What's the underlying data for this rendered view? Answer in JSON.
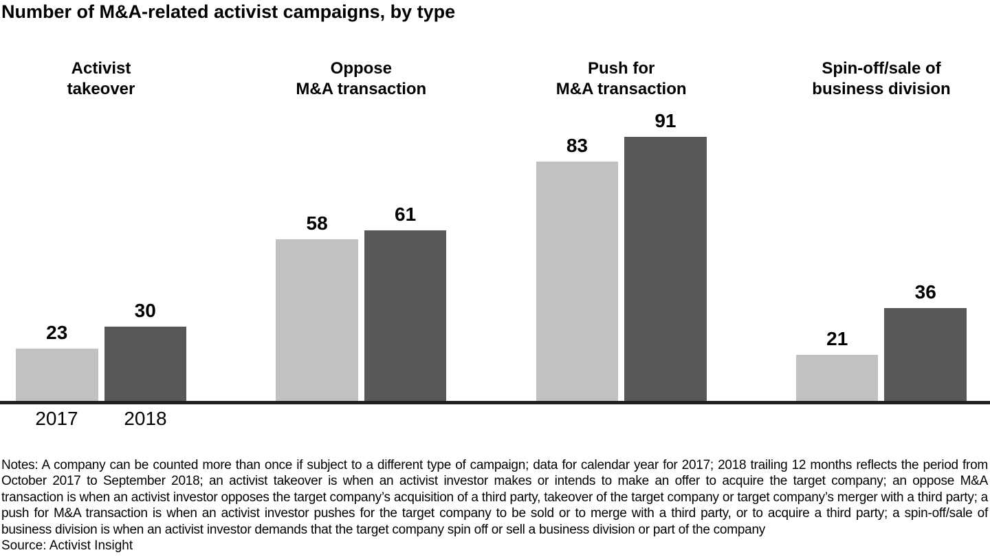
{
  "title": "Number of M&A-related activist campaigns, by type",
  "chart_data": {
    "type": "bar",
    "title": "Number of M&A-related activist campaigns, by type",
    "categories": [
      "Activist takeover",
      "Oppose M&A transaction",
      "Push for M&A transaction",
      "Spin-off/sale of business division"
    ],
    "series": [
      {
        "name": "2017",
        "color": "#c1c1c1",
        "values": [
          23,
          58,
          83,
          21
        ]
      },
      {
        "name": "2018",
        "color": "#58585a",
        "values": [
          30,
          61,
          91,
          36
        ]
      }
    ],
    "data_labels": true,
    "grid": false,
    "y_axis_visible": false,
    "legend_position": "year-labels-under-first-group"
  },
  "group_headers": [
    "Activist\ntakeover",
    "Oppose\nM&A transaction",
    "Push for\nM&A transaction",
    "Spin-off/sale of\nbusiness division"
  ],
  "x_axis_labels": [
    "2017",
    "2018"
  ],
  "colors": {
    "bar_2017": "#c1c1c1",
    "bar_2018": "#58585a",
    "axis_line": "#1f1f1f",
    "text": "#000000"
  },
  "notes": "Notes: A company can be counted more than once if subject to a different type of campaign; data for calendar year for 2017; 2018 trailing 12 months reflects the period from October 2017 to September 2018; an activist takeover is when an activist investor makes or intends to make an offer to acquire the target company; an oppose M&A transaction is when an activist investor opposes the target company’s acquisition of a third party, takeover of the target company or target company’s merger with a third party; a push for M&A transaction is when an activist investor pushes for the target company to be sold or to merge with a third party, or to acquire a third party; a spin-off/sale of business division is when an activist investor demands that the target company spin off or sell a business division or part of the company",
  "source": "Source: Activist Insight"
}
